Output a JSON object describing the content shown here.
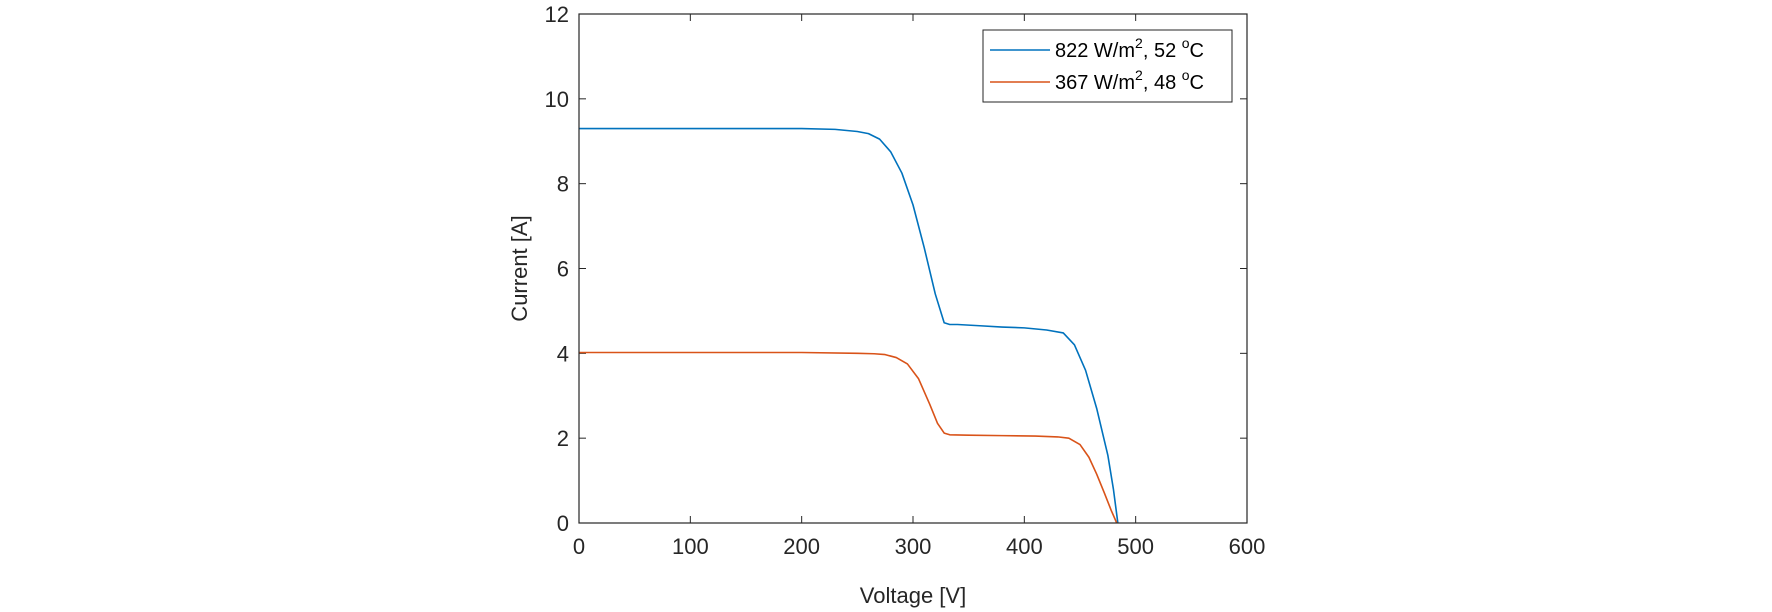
{
  "chart_data": {
    "type": "line",
    "xlabel": "Voltage [V]",
    "ylabel": "Current [A]",
    "xlim": [
      0,
      600
    ],
    "ylim": [
      0,
      12
    ],
    "xticks": [
      0,
      100,
      200,
      300,
      400,
      500,
      600
    ],
    "yticks": [
      0,
      2,
      4,
      6,
      8,
      10,
      12
    ],
    "grid": false,
    "legend_position": "top-right",
    "series": [
      {
        "name": "822 W/m², 52 °C",
        "legend": {
          "main": "822 W/m",
          "sup1": "2",
          "mid": ", 52 ",
          "sup2": "o",
          "end": "C"
        },
        "color": "#0072BD",
        "x": [
          0,
          50,
          100,
          150,
          200,
          230,
          250,
          260,
          270,
          280,
          290,
          300,
          310,
          320,
          328,
          333,
          340,
          360,
          380,
          400,
          420,
          435,
          445,
          455,
          465,
          475,
          480,
          484
        ],
        "y": [
          9.3,
          9.3,
          9.3,
          9.3,
          9.3,
          9.28,
          9.23,
          9.18,
          9.05,
          8.75,
          8.25,
          7.5,
          6.5,
          5.4,
          4.72,
          4.68,
          4.68,
          4.65,
          4.62,
          4.6,
          4.55,
          4.48,
          4.2,
          3.6,
          2.7,
          1.6,
          0.8,
          0.0
        ]
      },
      {
        "name": "367 W/m², 48 °C",
        "legend": {
          "main": "367 W/m",
          "sup1": "2",
          "mid": ", 48 ",
          "sup2": "o",
          "end": "C"
        },
        "color": "#D95319",
        "x": [
          0,
          50,
          100,
          150,
          200,
          250,
          265,
          275,
          285,
          295,
          305,
          315,
          322,
          328,
          333,
          350,
          380,
          410,
          430,
          440,
          450,
          458,
          465,
          472,
          478,
          483
        ],
        "y": [
          4.02,
          4.02,
          4.02,
          4.02,
          4.02,
          4.0,
          3.99,
          3.97,
          3.9,
          3.75,
          3.4,
          2.8,
          2.35,
          2.12,
          2.08,
          2.07,
          2.06,
          2.05,
          2.03,
          2.0,
          1.85,
          1.55,
          1.15,
          0.7,
          0.3,
          0.0
        ]
      }
    ]
  }
}
